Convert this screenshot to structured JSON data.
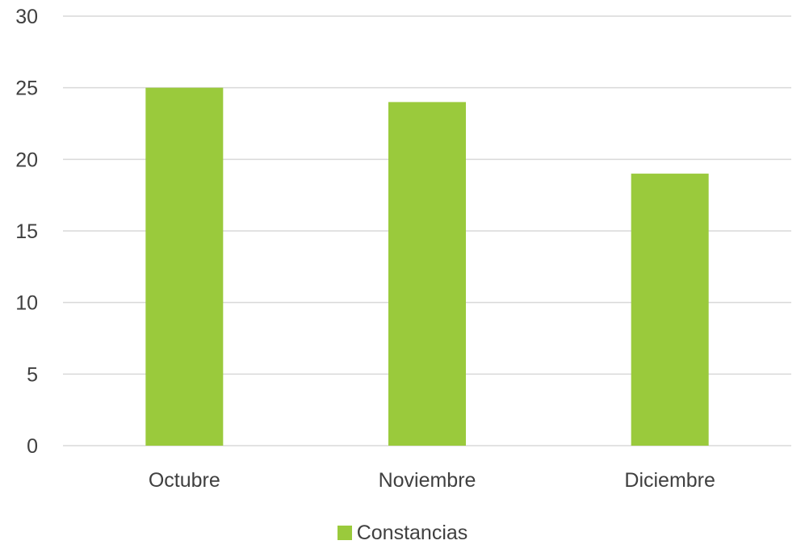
{
  "chart_data": {
    "type": "bar",
    "categories": [
      "Octubre",
      "Noviembre",
      "Diciembre"
    ],
    "series": [
      {
        "name": "Constancias",
        "values": [
          25,
          24,
          19
        ]
      }
    ],
    "title": "",
    "xlabel": "",
    "ylabel": "",
    "ylim": [
      0,
      30
    ],
    "yticks": [
      "0",
      "5",
      "10",
      "15",
      "20",
      "25",
      "30"
    ],
    "grid": true,
    "legend": "bottom",
    "colors": {
      "bar": "#9ACA3C",
      "grid": "#D9D9D9",
      "text": "#404040"
    }
  }
}
